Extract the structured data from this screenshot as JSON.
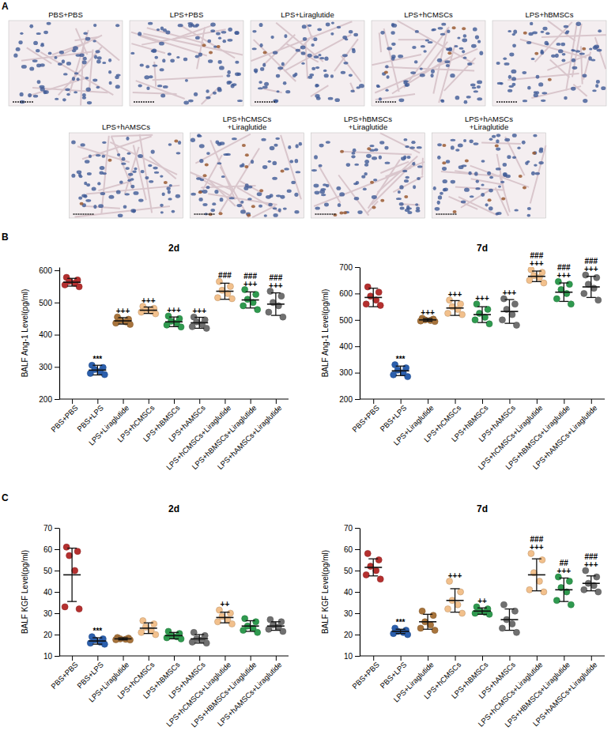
{
  "panel_a": {
    "panel": "A",
    "images": [
      "PBS+PBS",
      "LPS+PBS",
      "LPS+Liraglutide",
      "LPS+hCMSCs",
      "LPS+hBMSCs",
      "LPS+hAMSCs",
      "LPS+hCMSCs\n+Liraglutide",
      "LPS+hBMSCs\n+Liraglutide",
      "LPS+hAMSCs\n+Liraglutide"
    ]
  },
  "chart_data": [
    {
      "type": "dot",
      "panel": "B",
      "title": "2d",
      "ylabel": "BALF Ang-1 Level(pg/ml)",
      "categories": [
        "PBS+PBS",
        "PBS+LPS",
        "LPS+Liraglutide",
        "LPS+hCMSCs",
        "LPS+hBMSCs",
        "LPS+hAMSCs",
        "LPS+hCMSCs+Liraglutide",
        "LPS+hBMSCs+Liraglutide",
        "LPS+hAMSCs+Liraglutide"
      ],
      "colors": [
        "#b5302f",
        "#2b5fad",
        "#a8743c",
        "#f2c08c",
        "#2f9a4f",
        "#707070",
        "#f2c08c",
        "#2f9a4f",
        "#707070"
      ],
      "values": [
        563,
        290,
        443,
        476,
        440,
        437,
        535,
        508,
        495
      ],
      "error": [
        12,
        15,
        10,
        10,
        15,
        17,
        25,
        25,
        35
      ],
      "points": [
        [
          578,
          570,
          566,
          560,
          555,
          549
        ],
        [
          305,
          298,
          292,
          286,
          280,
          276
        ],
        [
          455,
          448,
          444,
          440,
          436,
          432
        ],
        [
          488,
          482,
          478,
          474,
          470,
          465
        ],
        [
          458,
          450,
          442,
          436,
          430,
          424
        ],
        [
          455,
          446,
          440,
          432,
          425,
          420
        ],
        [
          565,
          550,
          538,
          528,
          515,
          512
        ],
        [
          540,
          525,
          510,
          500,
          490,
          478
        ],
        [
          535,
          520,
          500,
          490,
          470,
          455
        ]
      ],
      "annotations": [
        [],
        [
          "***"
        ],
        [
          "+++"
        ],
        [
          "+++"
        ],
        [
          "+++"
        ],
        [
          "+++"
        ],
        [
          "###"
        ],
        [
          "###",
          "+++"
        ],
        [
          "###",
          "+++"
        ]
      ],
      "ylim": [
        200,
        610
      ],
      "yticks": [
        200,
        300,
        400,
        500,
        600
      ]
    },
    {
      "type": "dot",
      "title": "7d",
      "ylabel": "BALF Ang-1 Level(pg/ml)",
      "categories": [
        "PBS+PBS",
        "PBS+LPS",
        "LPS+Liraglutide",
        "LPS+hCMSCs",
        "LPS+hBMSCs",
        "LPS+hAMSCs",
        "LPS+hCMSCs+Liraglutide",
        "LPS+hBMSCs+Liraglutide",
        "LPS+hAMSCs+Liraglutide"
      ],
      "colors": [
        "#b5302f",
        "#2b5fad",
        "#a8743c",
        "#f2c08c",
        "#2f9a4f",
        "#707070",
        "#f2c08c",
        "#2f9a4f",
        "#707070"
      ],
      "values": [
        585,
        307,
        500,
        545,
        520,
        532,
        665,
        605,
        625
      ],
      "error": [
        35,
        18,
        5,
        28,
        30,
        45,
        20,
        35,
        40
      ],
      "points": [
        [
          625,
          605,
          590,
          575,
          560,
          555
        ],
        [
          330,
          318,
          310,
          300,
          292,
          285
        ],
        [
          506,
          503,
          500,
          498,
          496,
          494
        ],
        [
          575,
          560,
          550,
          540,
          525,
          520
        ],
        [
          560,
          540,
          525,
          510,
          500,
          485
        ],
        [
          580,
          560,
          540,
          520,
          500,
          480
        ],
        [
          690,
          680,
          668,
          660,
          650,
          640
        ],
        [
          645,
          635,
          615,
          600,
          580,
          560
        ],
        [
          670,
          660,
          635,
          620,
          600,
          575
        ]
      ],
      "annotations": [
        [],
        [
          "***"
        ],
        [
          "+++"
        ],
        [
          "+++"
        ],
        [
          "+++"
        ],
        [
          "+++"
        ],
        [
          "###",
          "+++"
        ],
        [
          "###",
          "+++"
        ],
        [
          "###",
          "+++"
        ]
      ],
      "ylim": [
        200,
        700
      ],
      "yticks": [
        200,
        300,
        400,
        500,
        600,
        700
      ]
    },
    {
      "type": "dot",
      "panel": "C",
      "title": "2d",
      "ylabel": "BALF KGF Level(pg/ml)",
      "categories": [
        "PBS+PBS",
        "PBS+LPS",
        "LPS+Liraglutide",
        "LPS+hCMSCs",
        "LPS+hBMSCs",
        "LPS+hAMSCs",
        "LPS+hCMSCs+Liraglutide",
        "LPS+HBMSCs+Liraglutide",
        "LPS+hAMSCs+Liraglutide"
      ],
      "colors": [
        "#b5302f",
        "#2b5fad",
        "#a8743c",
        "#f2c08c",
        "#2f9a4f",
        "#707070",
        "#f2c08c",
        "#2f9a4f",
        "#707070"
      ],
      "values": [
        48,
        17,
        18,
        23,
        19.5,
        18,
        28,
        24,
        24
      ],
      "error": [
        12.5,
        1.5,
        0.5,
        2.5,
        1.5,
        2,
        2.5,
        2.5,
        2
      ],
      "points": [
        [
          61,
          59,
          57,
          50,
          33,
          32
        ],
        [
          19,
          18,
          17.5,
          16.5,
          16,
          15.5
        ],
        [
          18.6,
          18.3,
          18,
          17.8,
          17.6,
          17.5
        ],
        [
          26.5,
          25,
          23.5,
          22,
          21,
          20
        ],
        [
          21.5,
          20.5,
          19.5,
          19,
          18.5,
          18
        ],
        [
          21,
          19.5,
          18,
          17.5,
          16.5,
          16
        ],
        [
          31.5,
          30,
          28.5,
          27,
          26,
          25
        ],
        [
          27.5,
          26,
          24,
          23,
          22,
          21
        ],
        [
          27,
          26,
          24.5,
          23.5,
          22.5,
          21.5
        ]
      ],
      "annotations": [
        [],
        [
          "***"
        ],
        [],
        [],
        [],
        [],
        [
          "++"
        ],
        [],
        []
      ],
      "ylim": [
        10,
        70
      ],
      "yticks": [
        10,
        20,
        30,
        40,
        50,
        60,
        70
      ]
    },
    {
      "type": "dot",
      "title": "7d",
      "ylabel": "BALF KGF Level(pg/ml)",
      "categories": [
        "PBS+PBS",
        "PBS+LPS",
        "LPS+Liraglutide",
        "LPS+hCMSCs",
        "LPS+hBMSCs",
        "LPS+hAMSCs",
        "LPS+hCMSCs+Liraglutide",
        "LPS+HBMSCs+Liraglutide",
        "LPS+hAMSCs+Liraglutide"
      ],
      "colors": [
        "#b5302f",
        "#2b5fad",
        "#a8743c",
        "#f2c08c",
        "#2f9a4f",
        "#707070",
        "#f2c08c",
        "#2f9a4f",
        "#707070"
      ],
      "values": [
        51.5,
        21.5,
        26,
        36,
        31,
        27,
        48,
        41,
        44
      ],
      "error": [
        4,
        1,
        3.5,
        5.5,
        1.5,
        5,
        7.5,
        5.5,
        3.5
      ],
      "points": [
        [
          58,
          55,
          52,
          50,
          48,
          46
        ],
        [
          23,
          22,
          21.5,
          21,
          20.5,
          20
        ],
        [
          31,
          29,
          26,
          24.5,
          23,
          22
        ],
        [
          45,
          40,
          36,
          34,
          32,
          30
        ],
        [
          33,
          32,
          31,
          30.5,
          30,
          29.5
        ],
        [
          34,
          31,
          27,
          25,
          23,
          21
        ],
        [
          58,
          55,
          49,
          45,
          41,
          40
        ],
        [
          47,
          45,
          42,
          40,
          36,
          34
        ],
        [
          50,
          47,
          44,
          43,
          41,
          40
        ]
      ],
      "annotations": [
        [],
        [
          "***"
        ],
        [],
        [
          "+++"
        ],
        [
          "++"
        ],
        [],
        [
          "###",
          "+++"
        ],
        [
          "##",
          "+++"
        ],
        [
          "###",
          "+++"
        ]
      ],
      "ylim": [
        10,
        70
      ],
      "yticks": [
        10,
        20,
        30,
        40,
        50,
        60,
        70
      ]
    }
  ]
}
